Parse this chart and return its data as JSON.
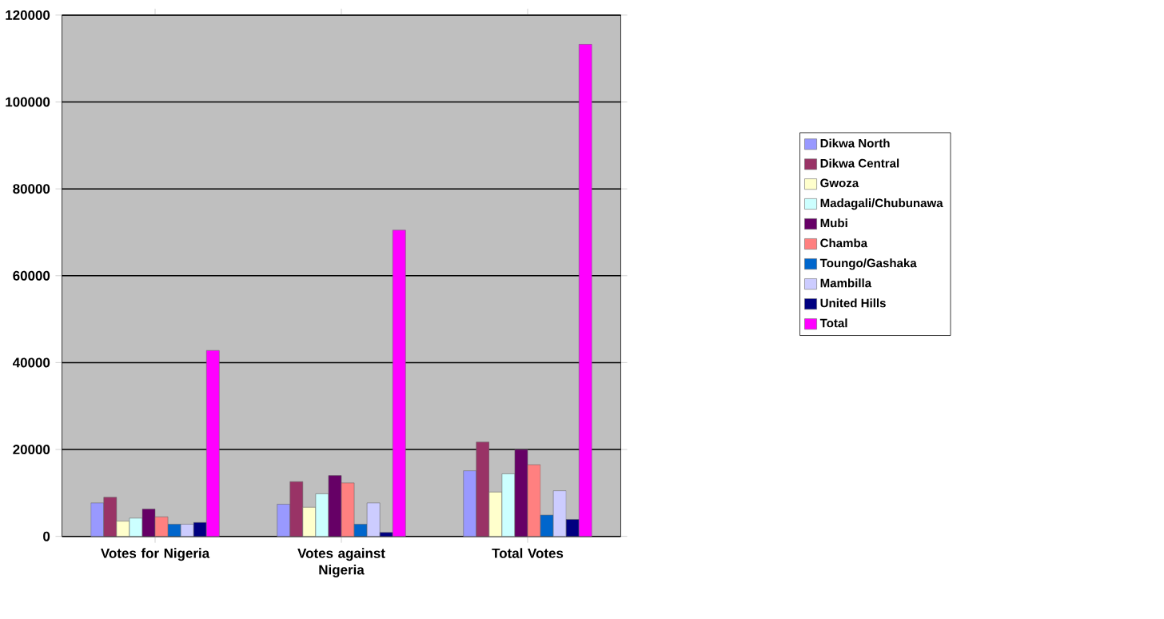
{
  "chart_data": {
    "type": "bar",
    "categories": [
      "Votes for Nigeria",
      "Votes against Nigeria",
      "Total Votes"
    ],
    "series": [
      {
        "name": "Dikwa North",
        "color": "#9999ff",
        "values": [
          7700,
          7400,
          15100
        ]
      },
      {
        "name": "Dikwa Central",
        "color": "#993366",
        "values": [
          9000,
          12600,
          21700
        ]
      },
      {
        "name": "Gwoza",
        "color": "#ffffcc",
        "values": [
          3500,
          6700,
          10200
        ]
      },
      {
        "name": "Madagali/Chubunawa",
        "color": "#ccffff",
        "values": [
          4200,
          9800,
          14400
        ]
      },
      {
        "name": "Mubi",
        "color": "#660066",
        "values": [
          6300,
          14000,
          20000
        ]
      },
      {
        "name": "Chamba",
        "color": "#ff8080",
        "values": [
          4500,
          12300,
          16500
        ]
      },
      {
        "name": "Toungo/Gashaka",
        "color": "#0066cc",
        "values": [
          2800,
          2800,
          4900
        ]
      },
      {
        "name": "Mambilla",
        "color": "#ccccff",
        "values": [
          2800,
          7700,
          10500
        ]
      },
      {
        "name": "United Hills",
        "color": "#000080",
        "values": [
          3200,
          900,
          3900
        ]
      },
      {
        "name": "Total",
        "color": "#ff00ff",
        "values": [
          42800,
          70500,
          113300
        ]
      }
    ],
    "ylim": [
      0,
      120000
    ],
    "yticks": [
      0,
      20000,
      40000,
      60000,
      80000,
      100000,
      120000
    ],
    "grid": "y",
    "legend": "right"
  }
}
